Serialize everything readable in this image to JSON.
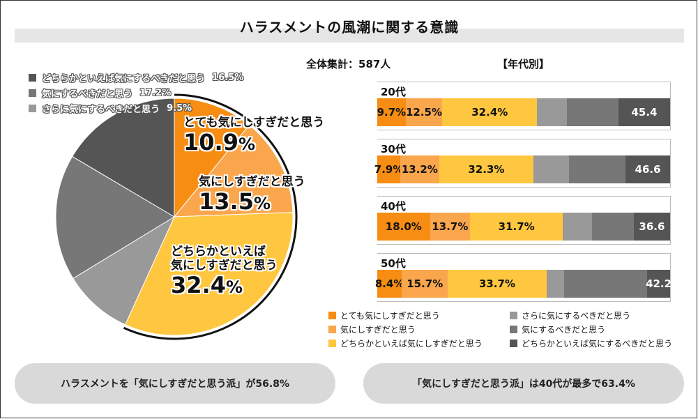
{
  "title": "ハラスメントの風潮に関する意識",
  "total_label": "全体集計：587人",
  "by_age_label": "【年代別】",
  "colors": {
    "c1": "#f78d12",
    "c2": "#f9a64d",
    "c3": "#ffc73f",
    "c4": "#999999",
    "c5": "#777777",
    "c6": "#555555"
  },
  "chart_data": [
    {
      "type": "pie",
      "slices": [
        {
          "name": "とても気にしすぎだと思う",
          "value": 10.9,
          "label": "10.9%",
          "color": "#f78d12"
        },
        {
          "name": "気にしすぎだと思う",
          "value": 13.5,
          "label": "13.5%",
          "color": "#f9a64d"
        },
        {
          "name": "どちらかといえば気にしすぎだと思う",
          "value": 32.4,
          "label": "32.4%",
          "color": "#ffc73f"
        },
        {
          "name": "さらに気にするべきだと思う",
          "value": 9.5,
          "label": "9.5%",
          "color": "#999999"
        },
        {
          "name": "気にするべきだと思う",
          "value": 17.2,
          "label": "17.2%",
          "color": "#777777"
        },
        {
          "name": "どちらかといえば気にするべきだと思う",
          "value": 16.5,
          "label": "16.5%",
          "color": "#555555"
        }
      ],
      "highlight_labels": [
        {
          "name1": "とても気にしすぎだと思う",
          "name2": "",
          "pct": "10.9"
        },
        {
          "name1": "気にしすぎだと思う",
          "name2": "",
          "pct": "13.5"
        },
        {
          "name1": "どちらかといえば",
          "name2": "気にしすぎだと思う",
          "pct": "32.4"
        }
      ],
      "legend": [
        {
          "name": "どちらかといえば気にするべきだと思う",
          "pct": "16.5%",
          "color": "#555555"
        },
        {
          "name": "気にするべきだと思う",
          "pct": "17.2%",
          "color": "#777777"
        },
        {
          "name": "さらに気にするべきだと思う",
          "pct": "9.5%",
          "color": "#999999"
        }
      ]
    },
    {
      "type": "bar",
      "stacked": true,
      "categories": [
        "20代",
        "30代",
        "40代",
        "50代"
      ],
      "series": [
        {
          "name": "とても気にしすぎだと思う",
          "color": "#f78d12",
          "values": [
            9.7,
            7.9,
            18.0,
            8.4
          ],
          "labels": [
            "9.7%",
            "7.9%",
            "18.0%",
            "8.4%"
          ]
        },
        {
          "name": "気にしすぎだと思う",
          "color": "#f9a64d",
          "values": [
            12.5,
            13.2,
            13.7,
            15.7
          ],
          "labels": [
            "12.5%",
            "13.2%",
            "13.7%",
            "15.7%"
          ]
        },
        {
          "name": "どちらかといえば気にしすぎだと思う",
          "color": "#ffc73f",
          "values": [
            32.4,
            32.3,
            31.7,
            33.7
          ],
          "labels": [
            "32.4%",
            "32.3%",
            "31.7%",
            "33.7%"
          ]
        },
        {
          "name": "さらに気にするべきだと思う",
          "color": "#999999",
          "values": [
            10.2,
            12.1,
            10.0,
            5.9
          ],
          "labels": [
            "",
            "",
            "",
            ""
          ]
        },
        {
          "name": "気にするべきだと思う",
          "color": "#777777",
          "values": [
            17.6,
            19.3,
            14.2,
            28.5
          ],
          "labels": [
            "",
            "",
            "",
            ""
          ]
        },
        {
          "name": "どちらかといえば気にするべきだと思う",
          "color": "#555555",
          "values": [
            17.6,
            15.2,
            12.4,
            7.8
          ],
          "labels": [
            "",
            "",
            "",
            ""
          ]
        }
      ],
      "combined_labels": [
        "45.4",
        "46.6",
        "36.6",
        "42.2"
      ],
      "legend": [
        {
          "name": "とても気にしすぎだと思う",
          "color": "#f78d12"
        },
        {
          "name": "さらに気にするべきだと思う",
          "color": "#999999"
        },
        {
          "name": "気にしすぎだと思う",
          "color": "#f9a64d"
        },
        {
          "name": "気にするべきだと思う",
          "color": "#777777"
        },
        {
          "name": "どちらかといえば気にしすぎだと思う",
          "color": "#ffc73f"
        },
        {
          "name": "どちらかといえば気にするべきだと思う",
          "color": "#555555"
        }
      ]
    }
  ],
  "summary_left": "ハラスメントを「気にしすぎだと思う派」が56.8%",
  "summary_right": "「気にしすぎだと思う派」は40代が最多で63.4%"
}
